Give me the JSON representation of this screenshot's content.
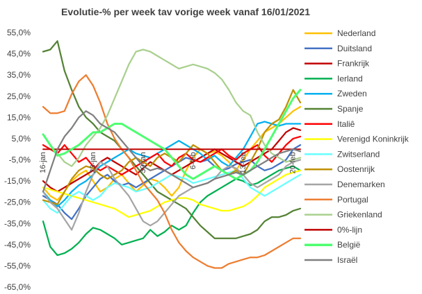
{
  "chart_data": {
    "type": "line",
    "title": "Evolutie-% per week tav vorige week vanaf 16/01/2021",
    "xlabel": "",
    "ylabel": "",
    "ylim": [
      -65,
      55
    ],
    "yticks": [
      55,
      45,
      35,
      25,
      15,
      5,
      -5,
      -15,
      -25,
      -35,
      -45,
      -55,
      -65
    ],
    "ytick_labels": [
      "55,0%",
      "45,0%",
      "35,0%",
      "25,0%",
      "15,0%",
      "5,0%",
      "-5,0%",
      "-15,0%",
      "-25,0%",
      "-35,0%",
      "-45,0%",
      "-55,0%",
      "-65,0%"
    ],
    "x": [
      0,
      1,
      2,
      3,
      4,
      5,
      6,
      7,
      8,
      9,
      10,
      11,
      12,
      13,
      14,
      15,
      16,
      17,
      18,
      19,
      20,
      21,
      22,
      23,
      24,
      25,
      26,
      27,
      28,
      29,
      30,
      31,
      32,
      33,
      34,
      35,
      36
    ],
    "xlim": [
      0,
      36
    ],
    "xticks": [
      {
        "x": 0,
        "label": "16-jan"
      },
      {
        "x": 7,
        "label": "23-jan"
      },
      {
        "x": 14,
        "label": "30-jan"
      },
      {
        "x": 21,
        "label": "6-feb"
      },
      {
        "x": 28,
        "label": "13-feb"
      },
      {
        "x": 35,
        "label": "20-feb"
      }
    ],
    "grid": false,
    "legend_position": "right",
    "series": [
      {
        "name": "Nederland",
        "color": "#FFC000",
        "values": [
          -18,
          -22,
          -24,
          -20,
          -15,
          -12,
          -10,
          -15,
          -20,
          -18,
          -14,
          -12,
          -16,
          -20,
          -17,
          -14,
          -15,
          -18,
          -22,
          -18,
          -10,
          -4,
          0,
          -2,
          -1,
          -3,
          -6,
          -10,
          -5,
          0,
          4,
          8,
          10,
          12,
          15,
          18,
          20
        ]
      },
      {
        "name": "Duitsland",
        "color": "#4472C4",
        "values": [
          -22,
          -24,
          -26,
          -30,
          -33,
          -28,
          -22,
          -18,
          -14,
          -12,
          -15,
          -17,
          -16,
          -18,
          -16,
          -14,
          -12,
          -10,
          -8,
          -6,
          -4,
          -5,
          -6,
          -5,
          -8,
          -10,
          -9,
          -7,
          -6,
          -5,
          -8,
          -10,
          -9,
          -7,
          -5,
          0,
          2
        ]
      },
      {
        "name": "Frankrijk",
        "color": "#C00000",
        "values": [
          -15,
          -18,
          -20,
          -18,
          -16,
          -14,
          -12,
          -10,
          -6,
          -4,
          -6,
          -8,
          -10,
          -12,
          -9,
          -6,
          -8,
          -10,
          -12,
          -10,
          -8,
          -6,
          -4,
          -2,
          0,
          -2,
          -4,
          -6,
          -8,
          -6,
          -4,
          -2,
          0,
          4,
          8,
          10,
          9
        ]
      },
      {
        "name": "Ierland",
        "color": "#00B050",
        "values": [
          -34,
          -46,
          -50,
          -49,
          -47,
          -44,
          -40,
          -37,
          -38,
          -40,
          -42,
          -45,
          -44,
          -43,
          -42,
          -38,
          -41,
          -39,
          -36,
          -38,
          -36,
          -30,
          -25,
          -22,
          -20,
          -18,
          -16,
          -14,
          -15,
          -17,
          -16,
          -14,
          -12,
          -10,
          -9,
          -8,
          -10
        ]
      },
      {
        "name": "Zweden",
        "color": "#00B0F0",
        "values": [
          -20,
          -24,
          -27,
          -24,
          -20,
          -17,
          -15,
          -12,
          -8,
          -6,
          -4,
          -2,
          0,
          -2,
          -3,
          -4,
          -2,
          0,
          2,
          4,
          2,
          0,
          -2,
          -5,
          -3,
          -6,
          -8,
          -4,
          0,
          6,
          12,
          13,
          12,
          11,
          12,
          12,
          12
        ]
      },
      {
        "name": "Spanje",
        "color": "#548235",
        "values": [
          46,
          47,
          51,
          37,
          28,
          20,
          15,
          12,
          8,
          6,
          4,
          0,
          -4,
          -8,
          -12,
          -16,
          -20,
          -22,
          -24,
          -26,
          -28,
          -32,
          -36,
          -39,
          -42,
          -42,
          -42,
          -42,
          -41,
          -40,
          -38,
          -34,
          -32,
          -32,
          -31,
          -29,
          -28
        ]
      },
      {
        "name": "Italiê",
        "color": "#FF0000",
        "values": [
          2,
          0,
          -2,
          2,
          -2,
          -6,
          -4,
          -8,
          -10,
          -8,
          -10,
          -12,
          -10,
          -8,
          -6,
          -4,
          -2,
          -6,
          -8,
          -4,
          -2,
          -5,
          -6,
          -4,
          -2,
          0,
          -3,
          -5,
          -2,
          0,
          2,
          -3,
          -6,
          -2,
          2,
          5,
          6
        ]
      },
      {
        "name": "Verenigd Koninkrijk",
        "color": "#FFFF00",
        "values": [
          -18,
          -19,
          -20,
          -21,
          -22,
          -23,
          -24,
          -25,
          -26,
          -27,
          -28,
          -30,
          -32,
          -31,
          -30,
          -29,
          -27,
          -25,
          -24,
          -23,
          -23,
          -24,
          -26,
          -27,
          -28,
          -29,
          -29,
          -28,
          -27,
          -25,
          -22,
          -18,
          -16,
          -14,
          -12,
          -11,
          -10
        ]
      },
      {
        "name": "Zwitserland",
        "color": "#66FFFF",
        "values": [
          -24,
          -28,
          -30,
          -26,
          -22,
          -20,
          -22,
          -24,
          -22,
          -18,
          -16,
          -17,
          -18,
          -20,
          -19,
          -18,
          -16,
          -14,
          -12,
          -13,
          -14,
          -16,
          -15,
          -14,
          -13,
          -12,
          -11,
          -10,
          -14,
          -18,
          -20,
          -22,
          -20,
          -18,
          -16,
          -14,
          -12
        ]
      },
      {
        "name": "Oostenrijk",
        "color": "#BF9000",
        "values": [
          -24,
          -25,
          -26,
          -20,
          -14,
          -10,
          -8,
          -9,
          -12,
          -14,
          -12,
          -10,
          -6,
          -4,
          -6,
          -8,
          -4,
          -2,
          -4,
          -6,
          -2,
          2,
          0,
          -2,
          -6,
          -10,
          -12,
          -10,
          -12,
          -6,
          0,
          8,
          12,
          14,
          20,
          28,
          22
        ]
      },
      {
        "name": "Denemarken",
        "color": "#A5A5A5",
        "values": [
          -20,
          -25,
          -28,
          -33,
          -38,
          -30,
          -20,
          -12,
          -6,
          -8,
          -14,
          -18,
          -22,
          -28,
          -34,
          -36,
          -34,
          -30,
          -26,
          -22,
          -20,
          -18,
          -17,
          -16,
          -14,
          -10,
          -8,
          -9,
          -12,
          -16,
          -18,
          -16,
          -14,
          -12,
          -8,
          -6,
          -5
        ]
      },
      {
        "name": "Portugal",
        "color": "#ED7D31",
        "values": [
          20,
          17,
          17,
          18,
          26,
          32,
          35,
          30,
          22,
          12,
          5,
          0,
          -4,
          -10,
          -16,
          -20,
          -24,
          -30,
          -38,
          -44,
          -48,
          -51,
          -53,
          -55,
          -56,
          -56,
          -54,
          -53,
          -52,
          -51,
          -51,
          -50,
          -48,
          -46,
          -44,
          -42,
          -42
        ]
      },
      {
        "name": "Griekenland",
        "color": "#A9D08E",
        "values": [
          7,
          2,
          -2,
          -6,
          -8,
          -4,
          2,
          6,
          10,
          16,
          24,
          32,
          40,
          46,
          47,
          46,
          44,
          42,
          40,
          38,
          39,
          40,
          39,
          38,
          36,
          33,
          28,
          22,
          18,
          16,
          8,
          2,
          -2,
          -4,
          -6,
          -5,
          -4
        ]
      },
      {
        "name": "0%-lijn",
        "color": "#C00000",
        "values": [
          0,
          0,
          0,
          0,
          0,
          0,
          0,
          0,
          0,
          0,
          0,
          0,
          0,
          0,
          0,
          0,
          0,
          0,
          0,
          0,
          0,
          0,
          0,
          0,
          0,
          0,
          0,
          0,
          0,
          0,
          0,
          0,
          0,
          0,
          0,
          0,
          0
        ]
      },
      {
        "name": "België",
        "color": "#4CFF6F",
        "values": [
          7,
          2,
          -3,
          -2,
          0,
          2,
          5,
          8,
          8,
          10,
          12,
          12,
          10,
          8,
          6,
          4,
          2,
          0,
          -4,
          -8,
          -12,
          -14,
          -12,
          -10,
          -8,
          -10,
          -12,
          -14,
          -12,
          -10,
          -6,
          0,
          6,
          12,
          18,
          24,
          28
        ]
      },
      {
        "name": "Israël",
        "color": "#7F7F7F",
        "values": [
          -20,
          -10,
          0,
          6,
          10,
          15,
          18,
          16,
          12,
          10,
          8,
          4,
          0,
          -4,
          -8,
          -10,
          -9,
          -10,
          -12,
          -14,
          -16,
          -18,
          -17,
          -16,
          -14,
          -13,
          -12,
          -11,
          -12,
          -10,
          -8,
          -6,
          -4,
          -2,
          -1,
          0,
          -1
        ]
      }
    ]
  }
}
